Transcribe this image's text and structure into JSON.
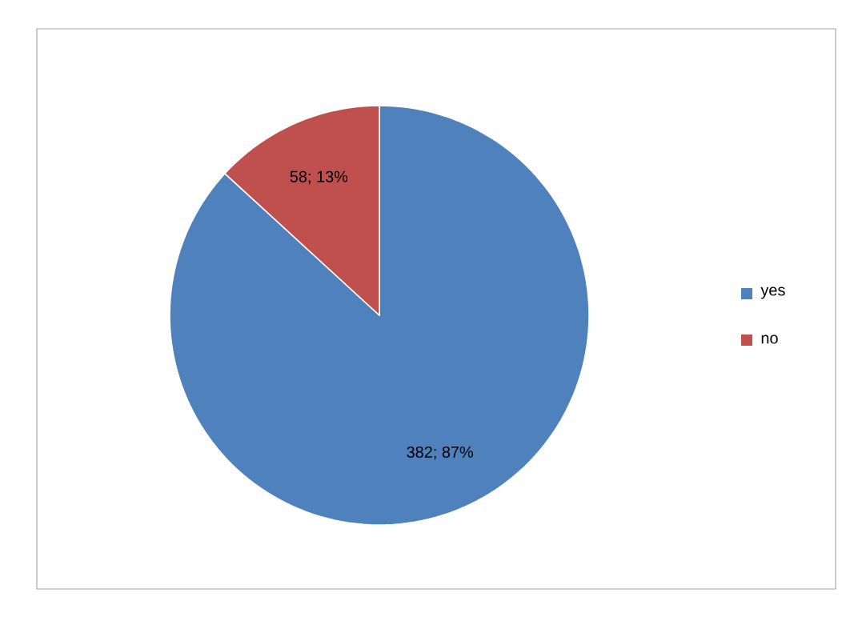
{
  "chart_data": {
    "type": "pie",
    "categories": [
      "yes",
      "no"
    ],
    "values": [
      382,
      58
    ],
    "colors": [
      "#4f81bd",
      "#c0504d"
    ],
    "value_labels": [
      "382; 87%",
      "58; 13%"
    ],
    "legend": "right"
  }
}
